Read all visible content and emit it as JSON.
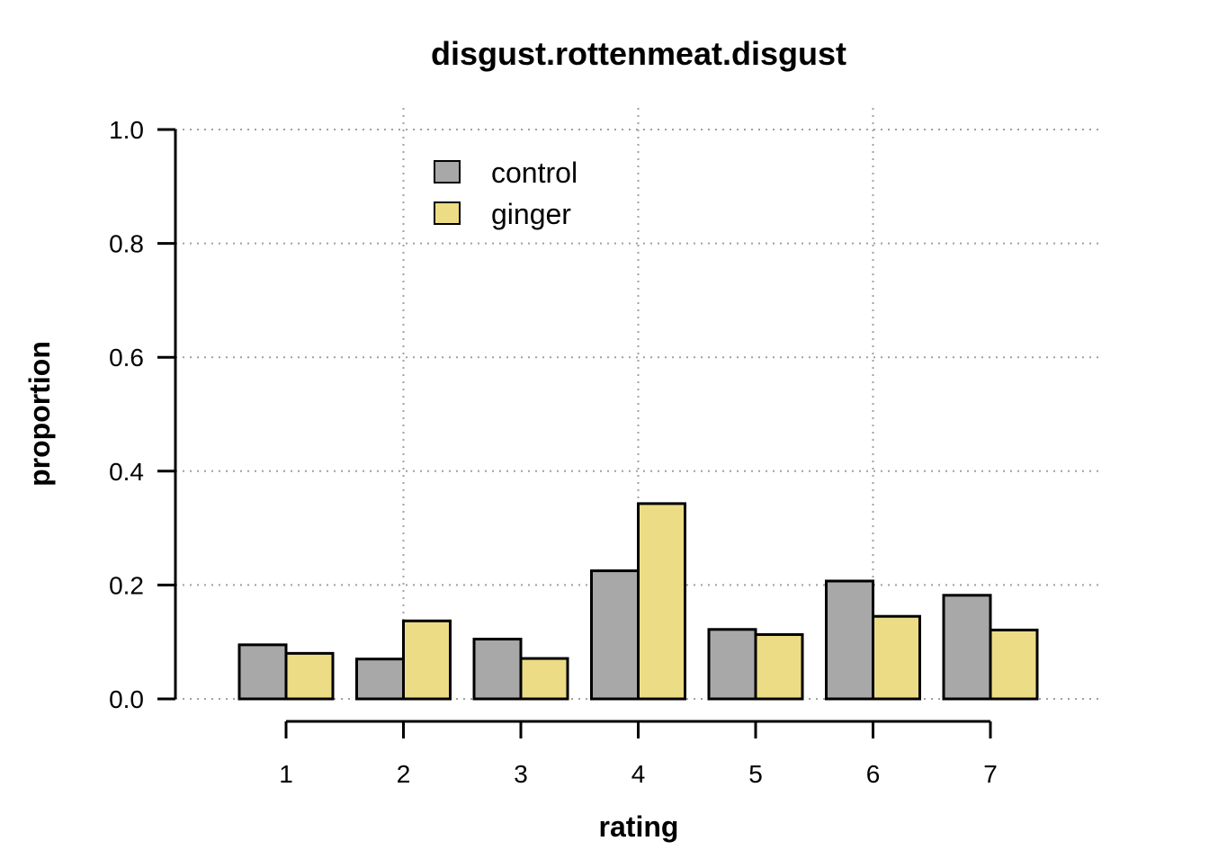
{
  "chart_data": {
    "type": "bar",
    "title": "disgust.rottenmeat.disgust",
    "xlabel": "rating",
    "ylabel": "proportion",
    "categories": [
      "1",
      "2",
      "3",
      "4",
      "5",
      "6",
      "7"
    ],
    "series": [
      {
        "name": "control",
        "color": "#a8a8a8",
        "values": [
          0.095,
          0.07,
          0.105,
          0.225,
          0.122,
          0.207,
          0.182
        ]
      },
      {
        "name": "ginger",
        "color": "#eddc86",
        "values": [
          0.08,
          0.137,
          0.071,
          0.343,
          0.113,
          0.145,
          0.121
        ]
      }
    ],
    "ylim": [
      0,
      1
    ],
    "yticks": [
      "0.0",
      "0.2",
      "0.4",
      "0.6",
      "0.8",
      "1.0"
    ],
    "grid": true,
    "legend_position": "top-left"
  }
}
